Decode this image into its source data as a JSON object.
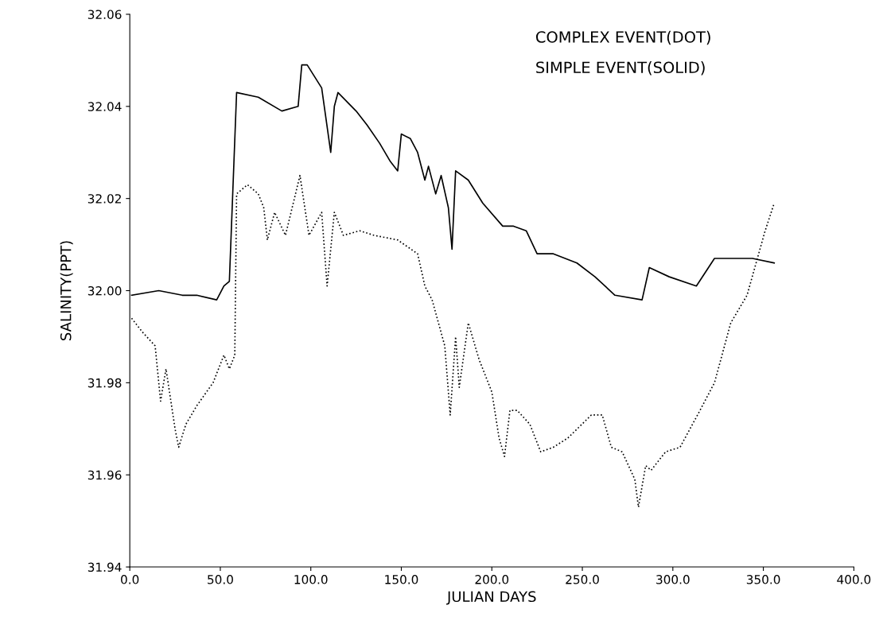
{
  "chart_data": {
    "type": "line",
    "xlabel": "JULIAN DAYS",
    "ylabel": "SALINITY(PPT)",
    "annotations": [
      "COMPLEX EVENT(DOT)",
      "SIMPLE EVENT(SOLID)"
    ],
    "xlim": [
      0,
      400
    ],
    "xticks": [
      {
        "value": 0,
        "label": "0.0"
      },
      {
        "value": 50,
        "label": "50.0"
      },
      {
        "value": 100,
        "label": "100.0"
      },
      {
        "value": 150,
        "label": "150.0"
      },
      {
        "value": 200,
        "label": "200.0"
      },
      {
        "value": 250,
        "label": "250.0"
      },
      {
        "value": 300,
        "label": "300.0"
      },
      {
        "value": 350,
        "label": "350.0"
      },
      {
        "value": 400,
        "label": "400.0"
      }
    ],
    "ylim": [
      31.94,
      32.06
    ],
    "yticks": [
      {
        "value": 31.94,
        "label": "31.94"
      },
      {
        "value": 31.96,
        "label": "31.96"
      },
      {
        "value": 31.98,
        "label": "31.98"
      },
      {
        "value": 32.0,
        "label": "32.00"
      },
      {
        "value": 32.02,
        "label": "32.02"
      },
      {
        "value": 32.04,
        "label": "32.04"
      },
      {
        "value": 32.06,
        "label": "32.06"
      }
    ],
    "grid": false,
    "legend": false,
    "marker": "none",
    "series": [
      {
        "color": "#000000",
        "line_style": "solid",
        "x": [
          1,
          16,
          29,
          37,
          48,
          52,
          55,
          59,
          71,
          84,
          93,
          95,
          98,
          106,
          111,
          113,
          115,
          125,
          131,
          138,
          144,
          148,
          150,
          155,
          159,
          163,
          165,
          169,
          172,
          176,
          178,
          180,
          187,
          195,
          206,
          212,
          219,
          225,
          234,
          247,
          257,
          268,
          283,
          287,
          298,
          313,
          323,
          344,
          356
        ],
        "values": [
          31.999,
          32.0,
          31.999,
          31.999,
          31.998,
          32.001,
          32.002,
          32.043,
          32.042,
          32.039,
          32.04,
          32.049,
          32.049,
          32.044,
          32.03,
          32.04,
          32.043,
          32.039,
          32.036,
          32.032,
          32.028,
          32.026,
          32.034,
          32.033,
          32.03,
          32.024,
          32.027,
          32.021,
          32.025,
          32.018,
          32.009,
          32.026,
          32.024,
          32.019,
          32.014,
          32.014,
          32.013,
          32.008,
          32.008,
          32.006,
          32.003,
          31.999,
          31.998,
          32.005,
          32.003,
          32.001,
          32.007,
          32.007,
          32.006
        ]
      },
      {
        "color": "#000000",
        "line_style": "dotted",
        "x": [
          1,
          7,
          14,
          17,
          20,
          25,
          27,
          31,
          37,
          46,
          52,
          55,
          58,
          59,
          65,
          71,
          74,
          76,
          80,
          86,
          94,
          99,
          106,
          109,
          113,
          118,
          127,
          135,
          148,
          159,
          163,
          167,
          174,
          177,
          180,
          182,
          187,
          193,
          200,
          204,
          207,
          210,
          214,
          221,
          227,
          234,
          242,
          255,
          261,
          266,
          272,
          279,
          281,
          285,
          288,
          296,
          304,
          315,
          323,
          332,
          341,
          351,
          356
        ],
        "values": [
          31.994,
          31.991,
          31.988,
          31.976,
          31.983,
          31.97,
          31.966,
          31.971,
          31.975,
          31.98,
          31.986,
          31.983,
          31.986,
          32.021,
          32.023,
          32.021,
          32.018,
          32.011,
          32.017,
          32.012,
          32.025,
          32.012,
          32.017,
          32.001,
          32.017,
          32.012,
          32.013,
          32.012,
          32.011,
          32.008,
          32.001,
          31.998,
          31.988,
          31.973,
          31.99,
          31.979,
          31.993,
          31.985,
          31.978,
          31.968,
          31.964,
          31.974,
          31.974,
          31.971,
          31.965,
          31.966,
          31.968,
          31.973,
          31.973,
          31.966,
          31.965,
          31.959,
          31.953,
          31.962,
          31.961,
          31.965,
          31.966,
          31.974,
          31.98,
          31.993,
          31.999,
          32.013,
          32.019
        ]
      }
    ]
  }
}
